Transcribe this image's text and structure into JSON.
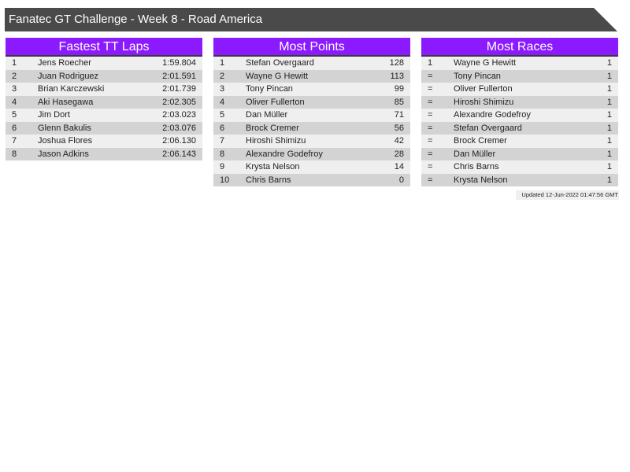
{
  "title": "Fanatec GT Challenge - Week 8 - Road America",
  "panels": [
    {
      "title": "Fastest TT Laps",
      "rows": [
        [
          "1",
          "Jens Roecher",
          "1:59.804"
        ],
        [
          "2",
          "Juan Rodriguez",
          "2:01.591"
        ],
        [
          "3",
          "Brian Karczewski",
          "2:01.739"
        ],
        [
          "4",
          "Aki Hasegawa",
          "2:02.305"
        ],
        [
          "5",
          "Jim Dort",
          "2:03.023"
        ],
        [
          "6",
          "Glenn Bakulis",
          "2:03.076"
        ],
        [
          "7",
          "Joshua Flores",
          "2:06.130"
        ],
        [
          "8",
          "Jason Adkins",
          "2:06.143"
        ]
      ]
    },
    {
      "title": "Most Points",
      "rows": [
        [
          "1",
          "Stefan Overgaard",
          "128"
        ],
        [
          "2",
          "Wayne G Hewitt",
          "113"
        ],
        [
          "3",
          "Tony Pincan",
          "99"
        ],
        [
          "4",
          "Oliver Fullerton",
          "85"
        ],
        [
          "5",
          "Dan Müller",
          "71"
        ],
        [
          "6",
          "Brock Cremer",
          "56"
        ],
        [
          "7",
          "Hiroshi Shimizu",
          "42"
        ],
        [
          "8",
          "Alexandre Godefroy",
          "28"
        ],
        [
          "9",
          "Krysta Nelson",
          "14"
        ],
        [
          "10",
          "Chris Barns",
          "0"
        ]
      ]
    },
    {
      "title": "Most Races",
      "rows": [
        [
          "1",
          "Wayne G Hewitt",
          "1"
        ],
        [
          "=",
          "Tony Pincan",
          "1"
        ],
        [
          "=",
          "Oliver Fullerton",
          "1"
        ],
        [
          "=",
          "Hiroshi Shimizu",
          "1"
        ],
        [
          "=",
          "Alexandre Godefroy",
          "1"
        ],
        [
          "=",
          "Stefan Overgaard",
          "1"
        ],
        [
          "=",
          "Brock Cremer",
          "1"
        ],
        [
          "=",
          "Dan Müller",
          "1"
        ],
        [
          "=",
          "Chris Barns",
          "1"
        ],
        [
          "=",
          "Krysta Nelson",
          "1"
        ]
      ]
    }
  ],
  "updated": "Updated 12-Jun-2022 01:47:56 GMT",
  "colors": {
    "header": "#8c1aff",
    "title_bar": "#4a4a4a"
  }
}
